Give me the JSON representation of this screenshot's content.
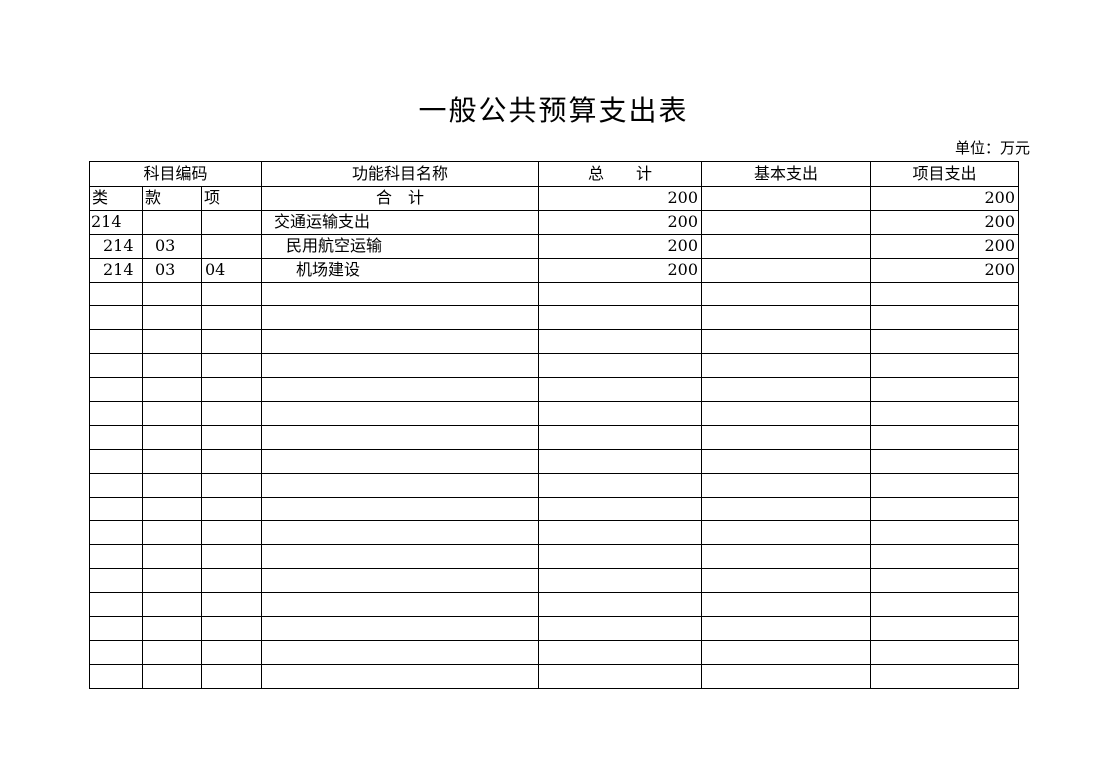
{
  "page": {
    "title": "一般公共预算支出表",
    "unit_label": "单位：万元"
  },
  "table": {
    "header": {
      "subject_code": "科目编码",
      "function_name": "功能科目名称",
      "total": "总　　计",
      "basic": "基本支出",
      "project": "项目支出"
    },
    "subheader": {
      "category": "类",
      "section": "款",
      "item": "项",
      "sum_label": "合　计",
      "total": "200",
      "basic": "",
      "project": "200"
    },
    "rows": [
      {
        "level": 1,
        "category": "214",
        "section": "",
        "item": "",
        "name": "交通运输支出",
        "total": "200",
        "basic": "",
        "project": "200"
      },
      {
        "level": 2,
        "category": "214",
        "section": "03",
        "item": "",
        "name": "民用航空运输",
        "total": "200",
        "basic": "",
        "project": "200"
      },
      {
        "level": 3,
        "category": "214",
        "section": "03",
        "item": "04",
        "name": "机场建设",
        "total": "200",
        "basic": "",
        "project": "200"
      }
    ],
    "empty_row_count": 17
  }
}
